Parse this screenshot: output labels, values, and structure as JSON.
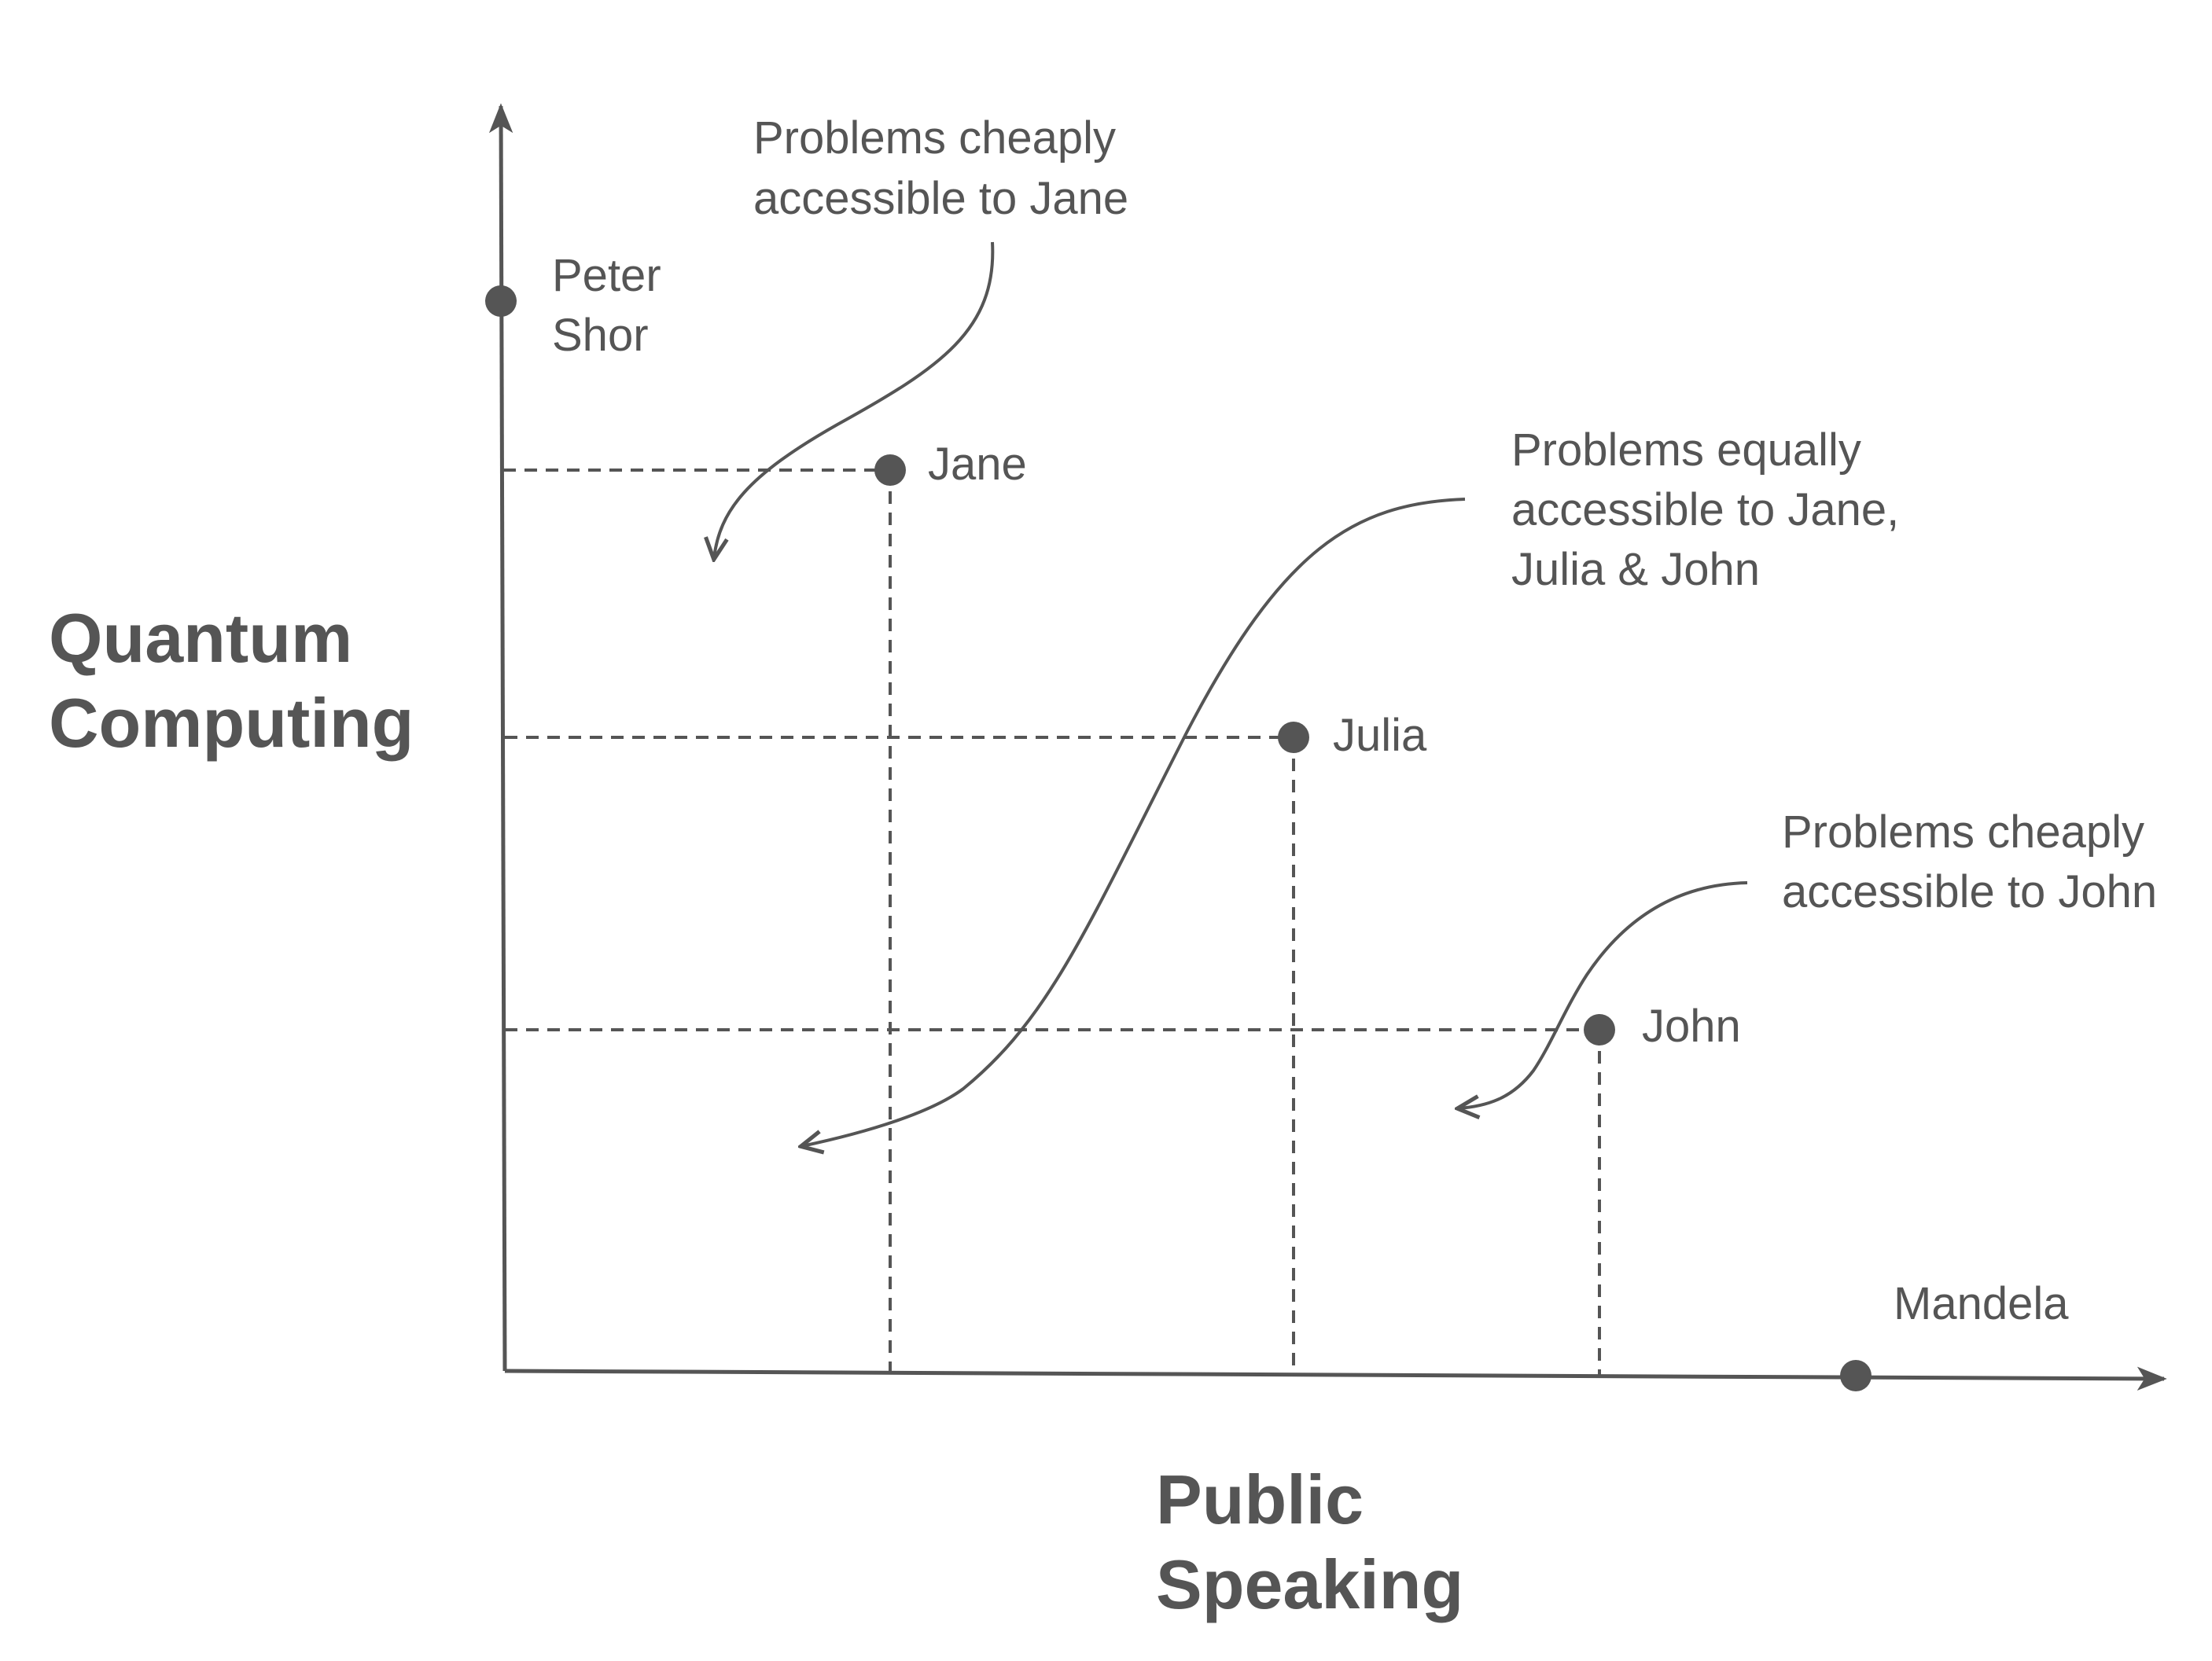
{
  "colors": {
    "ink": "#555555",
    "background": "#ffffff"
  },
  "axes": {
    "x_title_line1": "Public",
    "x_title_line2": "Speaking",
    "y_title_line1": "Quantum",
    "y_title_line2": "Computing"
  },
  "points": {
    "peter_shor": {
      "line1": "Peter",
      "line2": "Shor"
    },
    "jane": {
      "label": "Jane"
    },
    "julia": {
      "label": "Julia"
    },
    "john": {
      "label": "John"
    },
    "mandela": {
      "label": "Mandela"
    }
  },
  "annotations": {
    "jane_region": {
      "line1": "Problems cheaply",
      "line2": "accessible to Jane"
    },
    "equal_region": {
      "line1": "Problems equally",
      "line2": "accessible to Jane,",
      "line3": "Julia & John"
    },
    "john_region": {
      "line1": "Problems cheaply",
      "line2": "accessible to John"
    }
  }
}
